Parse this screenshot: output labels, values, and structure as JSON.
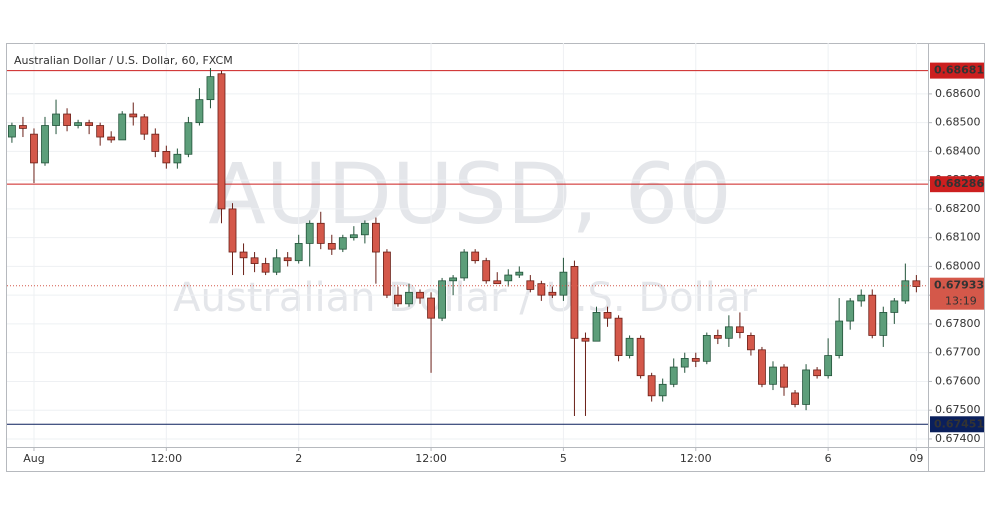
{
  "chart_data": {
    "type": "candlestick",
    "title": "Australian Dollar / U.S. Dollar, 60, FXCM",
    "watermark": "AUDUSD, 60",
    "watermark_subtitle": "Australian Dollar / U.S. Dollar",
    "categories": [
      null,
      null,
      "Aug",
      null,
      null,
      null,
      null,
      null,
      null,
      null,
      null,
      null,
      null,
      null,
      "12:00",
      null,
      null,
      null,
      null,
      null,
      null,
      null,
      null,
      null,
      null,
      null,
      "2",
      null,
      null,
      null,
      null,
      null,
      null,
      null,
      null,
      null,
      null,
      null,
      "12:00",
      null,
      null,
      null,
      null,
      null,
      null,
      null,
      null,
      null,
      null,
      null,
      "5",
      null,
      null,
      null,
      null,
      null,
      null,
      null,
      null,
      null,
      null,
      null,
      "12:00",
      null,
      null,
      null,
      null,
      null,
      null,
      null,
      null,
      null,
      null,
      null,
      "6",
      null,
      null,
      null,
      null,
      null,
      null,
      null,
      "09"
    ],
    "open": [
      0.6845,
      0.6849,
      0.6846,
      0.6836,
      0.6849,
      0.6853,
      0.6849,
      0.685,
      0.6849,
      0.6845,
      0.6844,
      0.6853,
      0.6852,
      0.6846,
      0.684,
      0.6836,
      0.6839,
      0.685,
      0.6858,
      0.6867,
      0.682,
      0.6805,
      0.6803,
      0.6801,
      0.6798,
      0.6803,
      0.6802,
      0.6808,
      0.6815,
      0.6808,
      0.6806,
      0.681,
      0.6811,
      0.6815,
      0.6805,
      0.679,
      0.6787,
      0.6791,
      0.6789,
      0.6782,
      0.6795,
      0.6796,
      0.6805,
      0.6802,
      0.6795,
      0.6795,
      0.6797,
      0.6795,
      0.6794,
      0.6791,
      0.679,
      0.68,
      0.6775,
      0.6774,
      0.6784,
      0.6782,
      0.6769,
      0.6775,
      0.6762,
      0.6755,
      0.6759,
      0.6765,
      0.6768,
      0.6767,
      0.6776,
      0.6775,
      0.6779,
      0.6776,
      0.6771,
      0.6759,
      0.6765,
      0.6756,
      0.6752,
      0.6764,
      0.6762,
      0.6769,
      0.6781,
      0.6788,
      0.679,
      0.6776,
      0.6784,
      0.6788,
      0.6795
    ],
    "high": [
      0.685,
      0.6852,
      0.6848,
      0.6852,
      0.6858,
      0.6855,
      0.6851,
      0.6851,
      0.685,
      0.6847,
      0.6854,
      0.6857,
      0.6853,
      0.6848,
      0.6842,
      0.6841,
      0.6852,
      0.6862,
      0.6869,
      0.6868,
      0.6822,
      0.6808,
      0.6805,
      0.6803,
      0.6806,
      0.6805,
      0.6811,
      0.6816,
      0.6819,
      0.6811,
      0.6811,
      0.6814,
      0.6816,
      0.6817,
      0.6806,
      0.6793,
      0.6794,
      0.6792,
      0.6791,
      0.6796,
      0.6797,
      0.6806,
      0.6806,
      0.6803,
      0.6798,
      0.6799,
      0.68,
      0.6797,
      0.6795,
      0.6793,
      0.6803,
      0.6802,
      0.6777,
      0.6786,
      0.6786,
      0.6783,
      0.6776,
      0.6776,
      0.6763,
      0.6761,
      0.6768,
      0.677,
      0.677,
      0.6777,
      0.6778,
      0.6783,
      0.6784,
      0.6777,
      0.6772,
      0.6767,
      0.6766,
      0.6757,
      0.6766,
      0.6765,
      0.6775,
      0.6789,
      0.6789,
      0.6792,
      0.6792,
      0.6786,
      0.6789,
      0.6801,
      0.6797
    ],
    "low": [
      0.6843,
      0.6845,
      0.6829,
      0.6835,
      0.6846,
      0.6847,
      0.6848,
      0.6846,
      0.6842,
      0.6843,
      0.6844,
      0.6849,
      0.6844,
      0.6838,
      0.6834,
      0.6834,
      0.6838,
      0.6849,
      0.6855,
      0.6815,
      0.6797,
      0.6797,
      0.6798,
      0.6797,
      0.6797,
      0.68,
      0.6801,
      0.68,
      0.6806,
      0.6804,
      0.6805,
      0.6809,
      0.6808,
      0.6794,
      0.6789,
      0.6786,
      0.6786,
      0.6787,
      0.6763,
      0.6781,
      0.679,
      0.6795,
      0.6801,
      0.6794,
      0.6794,
      0.6793,
      0.6796,
      0.6791,
      0.6788,
      0.6789,
      0.6788,
      0.6748,
      0.6748,
      0.6774,
      0.6779,
      0.6767,
      0.6768,
      0.6761,
      0.6753,
      0.6753,
      0.6758,
      0.6763,
      0.6765,
      0.6766,
      0.6773,
      0.6772,
      0.6775,
      0.6769,
      0.6758,
      0.6757,
      0.6755,
      0.6751,
      0.675,
      0.6761,
      0.6761,
      0.6768,
      0.6778,
      0.6786,
      0.6775,
      0.6772,
      0.678,
      0.6787,
      0.6791
    ],
    "close": [
      0.6849,
      0.6848,
      0.6836,
      0.6849,
      0.6853,
      0.6849,
      0.685,
      0.6849,
      0.6845,
      0.6844,
      0.6853,
      0.6852,
      0.6846,
      0.684,
      0.6836,
      0.6839,
      0.685,
      0.6858,
      0.6866,
      0.682,
      0.6805,
      0.6803,
      0.6801,
      0.6798,
      0.6803,
      0.6802,
      0.6808,
      0.6815,
      0.6808,
      0.6806,
      0.681,
      0.6811,
      0.6815,
      0.6805,
      0.679,
      0.6787,
      0.6791,
      0.6789,
      0.6782,
      0.6795,
      0.6796,
      0.6805,
      0.6802,
      0.6795,
      0.6794,
      0.6797,
      0.6798,
      0.6792,
      0.679,
      0.679,
      0.6798,
      0.6775,
      0.6774,
      0.6784,
      0.6782,
      0.6769,
      0.6775,
      0.6762,
      0.6755,
      0.6759,
      0.6765,
      0.6768,
      0.6767,
      0.6776,
      0.6775,
      0.6779,
      0.6777,
      0.6771,
      0.6759,
      0.6765,
      0.6758,
      0.6752,
      0.6764,
      0.6762,
      0.6769,
      0.6781,
      0.6788,
      0.679,
      0.6776,
      0.6784,
      0.6788,
      0.6795,
      0.6793
    ],
    "up_color": "#5d9e7a",
    "down_color": "#d4584a",
    "ylim": [
      0.67372,
      0.68777
    ],
    "yticks": [
      {
        "value": 0.674,
        "label": "0.67400"
      },
      {
        "value": 0.675,
        "label": "0.67500"
      },
      {
        "value": 0.676,
        "label": "0.67600"
      },
      {
        "value": 0.677,
        "label": "0.67700"
      },
      {
        "value": 0.678,
        "label": "0.67800"
      },
      {
        "value": 0.679,
        "label": "0.67900"
      },
      {
        "value": 0.68,
        "label": "0.68000"
      },
      {
        "value": 0.681,
        "label": "0.68100"
      },
      {
        "value": 0.682,
        "label": "0.68200"
      },
      {
        "value": 0.683,
        "label": "0.68300"
      },
      {
        "value": 0.684,
        "label": "0.68400"
      },
      {
        "value": 0.685,
        "label": "0.68500"
      },
      {
        "value": 0.686,
        "label": "0.68600"
      }
    ],
    "grid": true,
    "levels": [
      {
        "value": 0.68681,
        "color": "#cc1f1f"
      },
      {
        "value": 0.68286,
        "color": "#cc1f1f"
      },
      {
        "value": 0.67451,
        "color": "#0a1f5c"
      }
    ],
    "last_price": 0.67933,
    "last_price_color": "#d4584a",
    "countdown": "13:19"
  }
}
